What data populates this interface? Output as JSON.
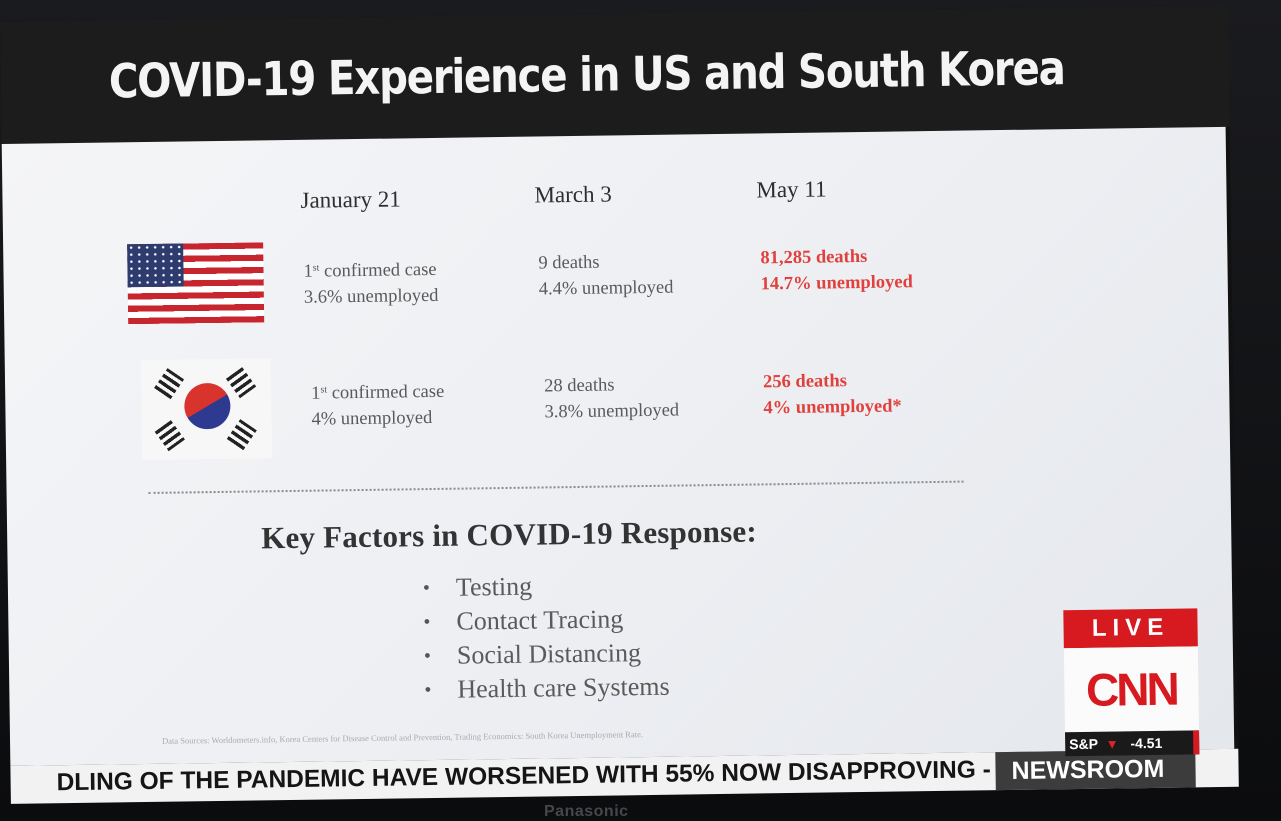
{
  "title": "COVID-19 Experience in US and South Korea",
  "table": {
    "columns": [
      "January 21",
      "March 3",
      "May 11"
    ],
    "rows": [
      {
        "country": "United States",
        "cells": [
          {
            "sup": "st",
            "line1_rest": " confirmed case",
            "line2": "3.6% unemployed"
          },
          {
            "line1": "9 deaths",
            "line2": "4.4% unemployed"
          },
          {
            "line1": "81,285 deaths",
            "line2": "14.7% unemployed"
          }
        ]
      },
      {
        "country": "South Korea",
        "cells": [
          {
            "sup": "st",
            "line1_rest": " confirmed case",
            "line2": "4% unemployed"
          },
          {
            "line1": "28 deaths",
            "line2": "3.8% unemployed"
          },
          {
            "line1": "256 deaths",
            "line2": "4% unemployed*"
          }
        ]
      }
    ],
    "highlight_color": "#e0413d"
  },
  "key_factors": {
    "title": "Key Factors in COVID-19 Response:",
    "items": [
      "Testing",
      "Contact Tracing",
      "Social Distancing",
      "Health care Systems"
    ]
  },
  "sources": "Data Sources: Worldometers.info, Korea Centers for Disease Control and Prevention, Trading Economics: South Korea Unemployment Rate.",
  "ticker": {
    "text": "DLING OF THE PANDEMIC HAVE WORSENED WITH 55% NOW DISAPPROVING -",
    "show": "NEWSROOM"
  },
  "network": {
    "live": "LIVE",
    "logo": "CNN",
    "index": "S&P",
    "change": "-4.51",
    "brand_color": "#d71920"
  },
  "tv_brand": "Panasonic"
}
